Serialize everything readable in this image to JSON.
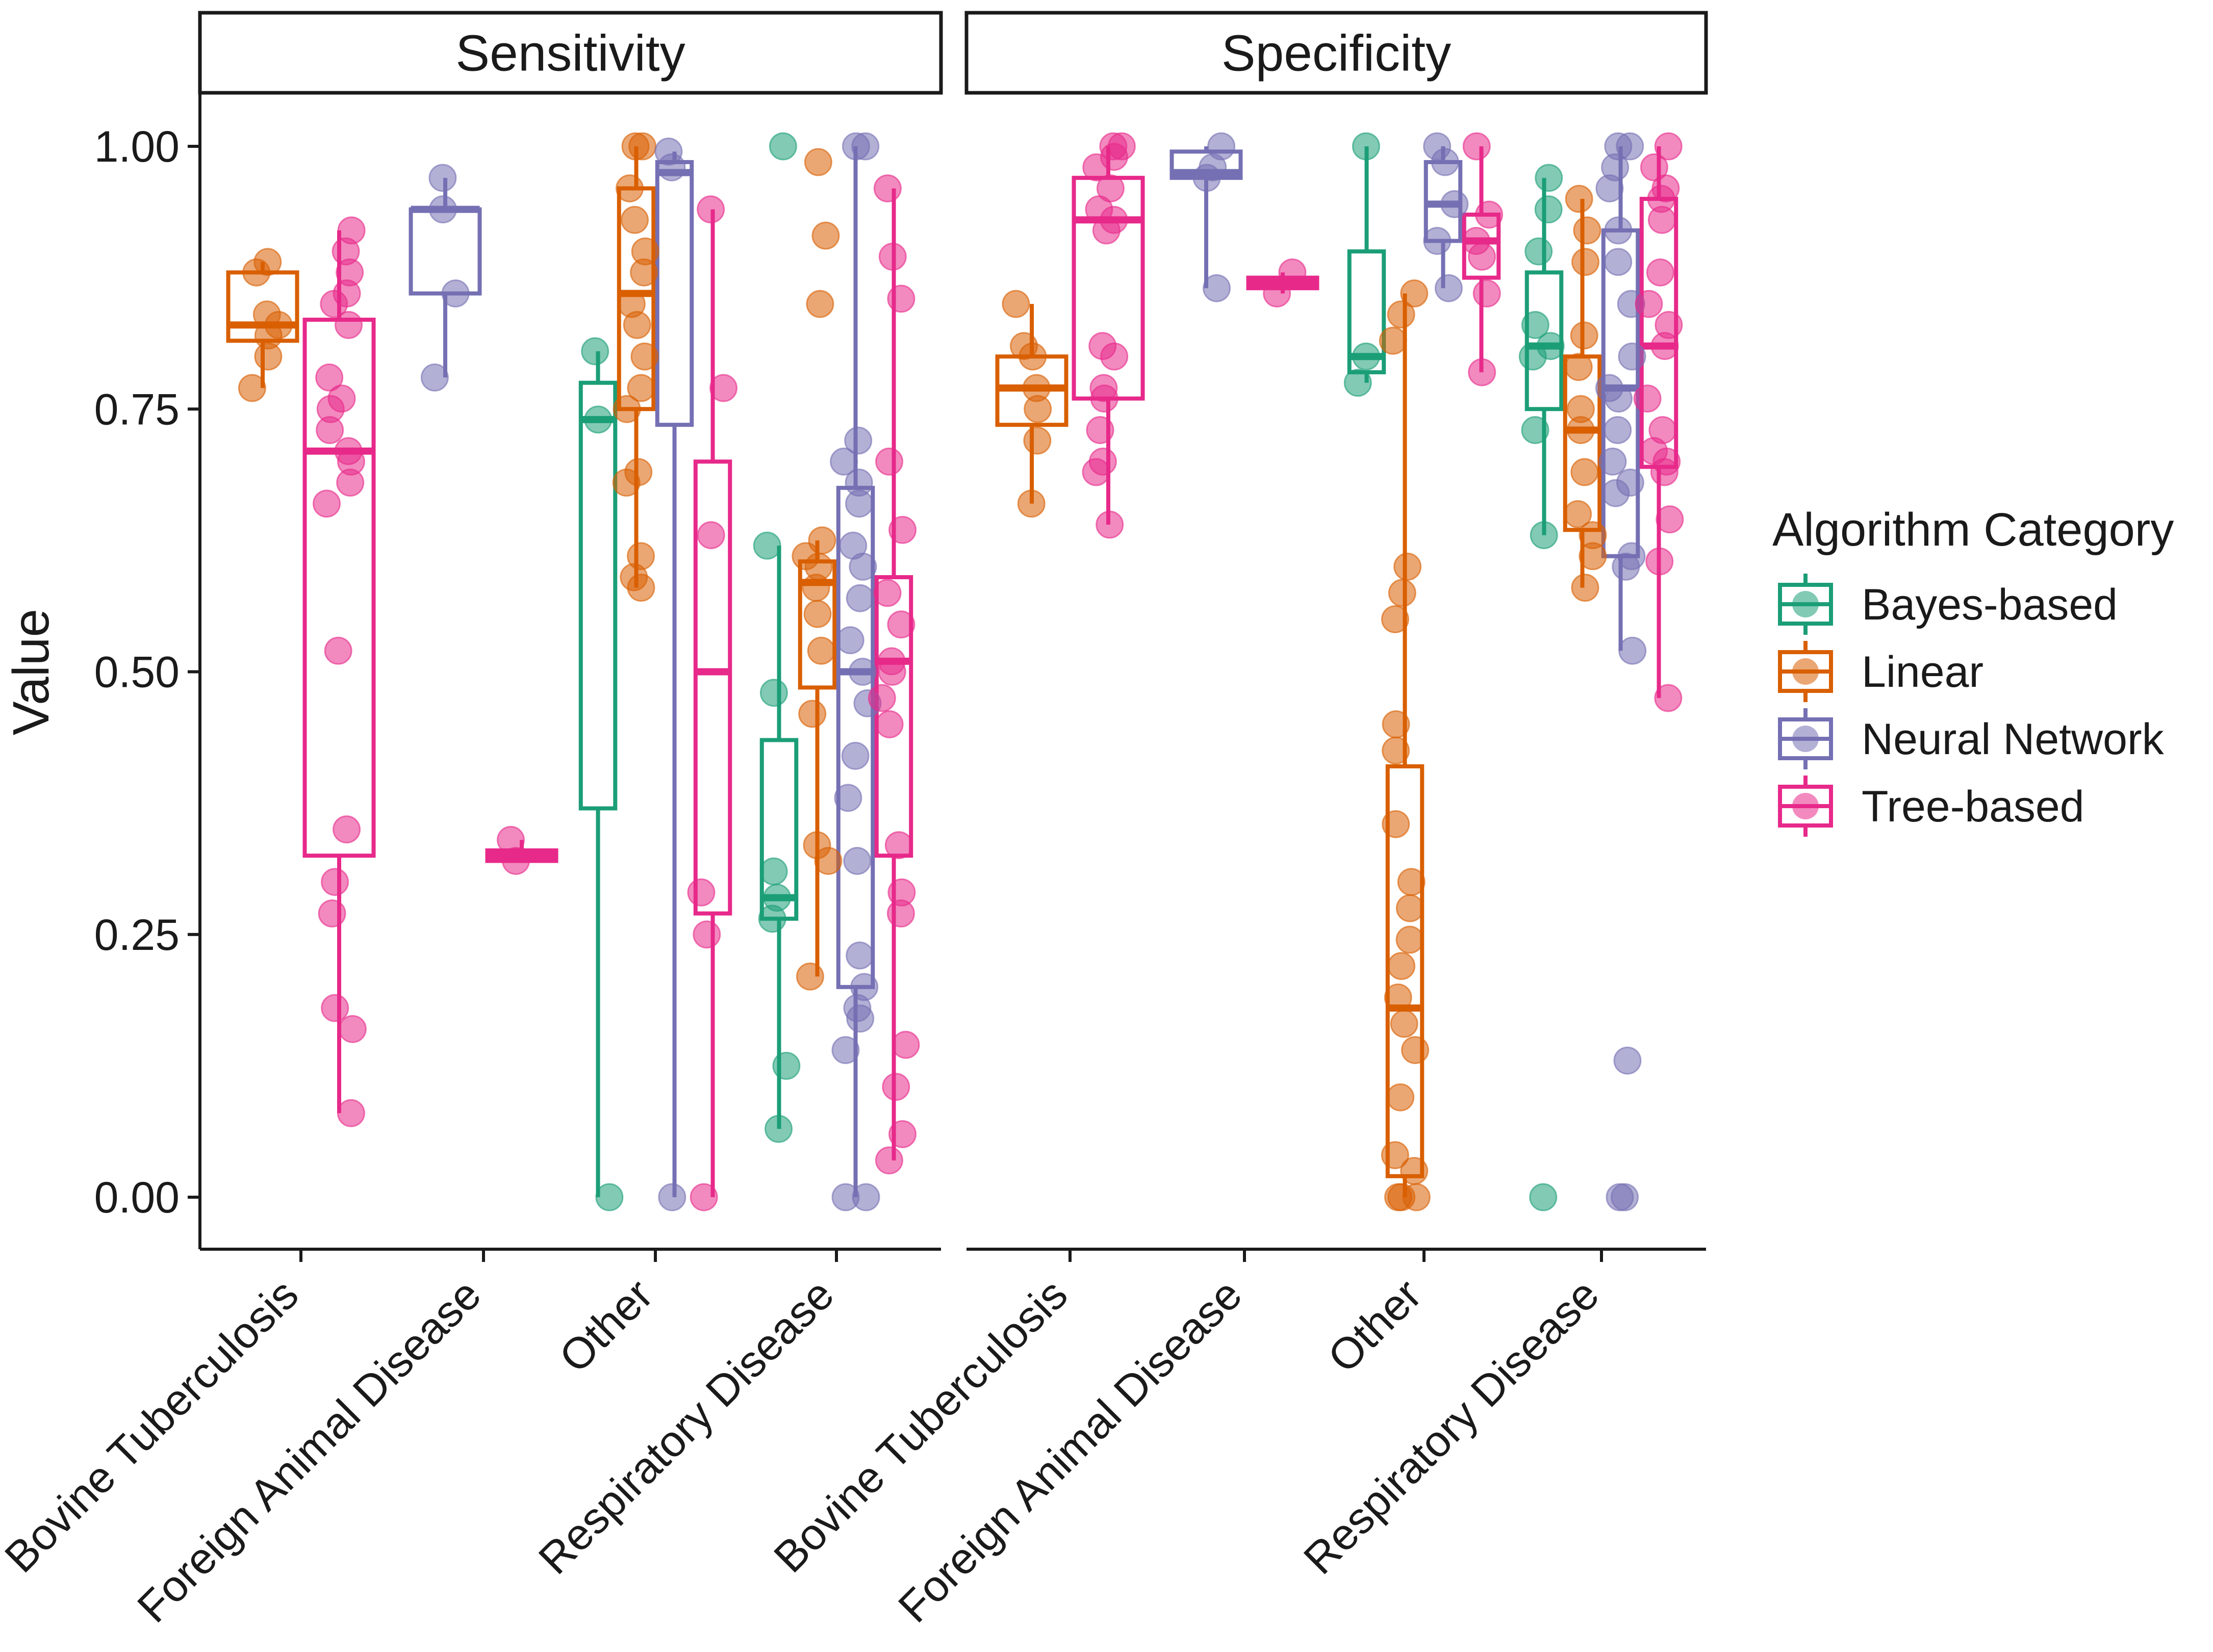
{
  "chart_data": {
    "type": "boxplot",
    "ylabel": "Value",
    "ylim": [
      -0.05,
      1.05
    ],
    "yticks": [
      0,
      0.25,
      0.5,
      0.75,
      1
    ],
    "ytick_labels": [
      "0.00",
      "0.25",
      "0.50",
      "0.75",
      "1.00"
    ],
    "panels": [
      "Sensitivity",
      "Specificity"
    ],
    "categories": [
      "Bovine Tuberculosis",
      "Foreign Animal Disease",
      "Other",
      "Respiratory Disease"
    ],
    "legend": {
      "title": "Algorithm Category",
      "position": "right",
      "items": [
        {
          "name": "Bayes-based",
          "color": "#1b9e77"
        },
        {
          "name": "Linear",
          "color": "#d95f02"
        },
        {
          "name": "Neural Network",
          "color": "#7570b3"
        },
        {
          "name": "Tree-based",
          "color": "#e7298a"
        }
      ]
    },
    "boxes": [
      {
        "panel": "Sensitivity",
        "category": "Bovine Tuberculosis",
        "series": "Linear",
        "min": 0.77,
        "q1": 0.815,
        "median": 0.83,
        "q3": 0.88,
        "max": 0.89
      },
      {
        "panel": "Sensitivity",
        "category": "Bovine Tuberculosis",
        "series": "Tree-based",
        "min": 0.08,
        "q1": 0.325,
        "median": 0.71,
        "q3": 0.835,
        "max": 0.92
      },
      {
        "panel": "Sensitivity",
        "category": "Foreign Animal Disease",
        "series": "Neural Network",
        "min": 0.78,
        "q1": 0.86,
        "median": 0.94,
        "q3": 0.94,
        "max": 0.97
      },
      {
        "panel": "Sensitivity",
        "category": "Foreign Animal Disease",
        "series": "Tree-based",
        "min": 0.32,
        "q1": 0.32,
        "median": 0.325,
        "q3": 0.33,
        "max": 0.34
      },
      {
        "panel": "Sensitivity",
        "category": "Other",
        "series": "Bayes-based",
        "min": 0.0,
        "q1": 0.37,
        "median": 0.74,
        "q3": 0.775,
        "max": 0.805
      },
      {
        "panel": "Sensitivity",
        "category": "Other",
        "series": "Linear",
        "min": 0.58,
        "q1": 0.75,
        "median": 0.86,
        "q3": 0.96,
        "max": 1.0
      },
      {
        "panel": "Sensitivity",
        "category": "Other",
        "series": "Neural Network",
        "min": 0.0,
        "q1": 0.735,
        "median": 0.975,
        "q3": 0.985,
        "max": 0.995
      },
      {
        "panel": "Sensitivity",
        "category": "Other",
        "series": "Tree-based",
        "min": 0.0,
        "q1": 0.27,
        "median": 0.5,
        "q3": 0.7,
        "max": 0.94
      },
      {
        "panel": "Sensitivity",
        "category": "Respiratory Disease",
        "series": "Bayes-based",
        "min": 0.065,
        "q1": 0.265,
        "median": 0.285,
        "q3": 0.435,
        "max": 0.62
      },
      {
        "panel": "Sensitivity",
        "category": "Respiratory Disease",
        "series": "Linear",
        "min": 0.21,
        "q1": 0.485,
        "median": 0.585,
        "q3": 0.605,
        "max": 0.625
      },
      {
        "panel": "Sensitivity",
        "category": "Respiratory Disease",
        "series": "Neural Network",
        "min": 0.0,
        "q1": 0.2,
        "median": 0.5,
        "q3": 0.675,
        "max": 1.0
      },
      {
        "panel": "Sensitivity",
        "category": "Respiratory Disease",
        "series": "Tree-based",
        "min": 0.035,
        "q1": 0.325,
        "median": 0.51,
        "q3": 0.59,
        "max": 0.96
      },
      {
        "panel": "Specificity",
        "category": "Bovine Tuberculosis",
        "series": "Linear",
        "min": 0.66,
        "q1": 0.735,
        "median": 0.77,
        "q3": 0.8,
        "max": 0.85
      },
      {
        "panel": "Specificity",
        "category": "Bovine Tuberculosis",
        "series": "Tree-based",
        "min": 0.64,
        "q1": 0.76,
        "median": 0.93,
        "q3": 0.97,
        "max": 1.0
      },
      {
        "panel": "Specificity",
        "category": "Foreign Animal Disease",
        "series": "Neural Network",
        "min": 0.865,
        "q1": 0.97,
        "median": 0.975,
        "q3": 0.995,
        "max": 1.0
      },
      {
        "panel": "Specificity",
        "category": "Foreign Animal Disease",
        "series": "Tree-based",
        "min": 0.86,
        "q1": 0.865,
        "median": 0.87,
        "q3": 0.875,
        "max": 0.88
      },
      {
        "panel": "Specificity",
        "category": "Other",
        "series": "Bayes-based",
        "min": 0.775,
        "q1": 0.785,
        "median": 0.8,
        "q3": 0.9,
        "max": 1.0
      },
      {
        "panel": "Specificity",
        "category": "Other",
        "series": "Linear",
        "min": 0.0,
        "q1": 0.02,
        "median": 0.18,
        "q3": 0.41,
        "max": 0.86
      },
      {
        "panel": "Specificity",
        "category": "Other",
        "series": "Neural Network",
        "min": 0.865,
        "q1": 0.91,
        "median": 0.945,
        "q3": 0.985,
        "max": 1.0
      },
      {
        "panel": "Specificity",
        "category": "Other",
        "series": "Tree-based",
        "min": 0.785,
        "q1": 0.875,
        "median": 0.91,
        "q3": 0.935,
        "max": 1.0
      },
      {
        "panel": "Specificity",
        "category": "Respiratory Disease",
        "series": "Bayes-based",
        "min": 0.63,
        "q1": 0.75,
        "median": 0.81,
        "q3": 0.88,
        "max": 0.97
      },
      {
        "panel": "Specificity",
        "category": "Respiratory Disease",
        "series": "Linear",
        "min": 0.58,
        "q1": 0.635,
        "median": 0.73,
        "q3": 0.8,
        "max": 0.95
      },
      {
        "panel": "Specificity",
        "category": "Respiratory Disease",
        "series": "Neural Network",
        "min": 0.52,
        "q1": 0.61,
        "median": 0.77,
        "q3": 0.92,
        "max": 1.0
      },
      {
        "panel": "Specificity",
        "category": "Respiratory Disease",
        "series": "Tree-based",
        "min": 0.475,
        "q1": 0.695,
        "median": 0.81,
        "q3": 0.95,
        "max": 1.0
      }
    ],
    "points": [
      {
        "panel": "Sensitivity",
        "category": "Bovine Tuberculosis",
        "series": "Linear",
        "values": [
          0.89,
          0.88,
          0.84,
          0.83,
          0.82,
          0.8,
          0.77
        ]
      },
      {
        "panel": "Sensitivity",
        "category": "Bovine Tuberculosis",
        "series": "Tree-based",
        "values": [
          0.92,
          0.9,
          0.88,
          0.86,
          0.85,
          0.83,
          0.78,
          0.76,
          0.75,
          0.73,
          0.71,
          0.7,
          0.68,
          0.66,
          0.52,
          0.35,
          0.3,
          0.27,
          0.18,
          0.16,
          0.08
        ]
      },
      {
        "panel": "Sensitivity",
        "category": "Foreign Animal Disease",
        "series": "Neural Network",
        "values": [
          0.97,
          0.94,
          0.86,
          0.78
        ]
      },
      {
        "panel": "Sensitivity",
        "category": "Foreign Animal Disease",
        "series": "Tree-based",
        "values": [
          0.34,
          0.32
        ]
      },
      {
        "panel": "Sensitivity",
        "category": "Other",
        "series": "Bayes-based",
        "values": [
          0.805,
          0.74,
          0.0
        ]
      },
      {
        "panel": "Sensitivity",
        "category": "Other",
        "series": "Linear",
        "values": [
          1.0,
          1.0,
          0.96,
          0.93,
          0.9,
          0.88,
          0.85,
          0.83,
          0.8,
          0.77,
          0.75,
          0.69,
          0.68,
          0.61,
          0.59,
          0.58
        ]
      },
      {
        "panel": "Sensitivity",
        "category": "Other",
        "series": "Neural Network",
        "values": [
          0.995,
          0.98,
          0.0
        ]
      },
      {
        "panel": "Sensitivity",
        "category": "Other",
        "series": "Tree-based",
        "values": [
          0.94,
          0.77,
          0.63,
          0.29,
          0.25,
          0.0
        ]
      },
      {
        "panel": "Sensitivity",
        "category": "Respiratory Disease",
        "series": "Bayes-based",
        "values": [
          1.0,
          0.62,
          0.48,
          0.31,
          0.285,
          0.265,
          0.125,
          0.065
        ]
      },
      {
        "panel": "Sensitivity",
        "category": "Respiratory Disease",
        "series": "Linear",
        "values": [
          0.985,
          0.915,
          0.85,
          0.625,
          0.61,
          0.6,
          0.58,
          0.555,
          0.52,
          0.46,
          0.335,
          0.32,
          0.21
        ]
      },
      {
        "panel": "Sensitivity",
        "category": "Respiratory Disease",
        "series": "Neural Network",
        "values": [
          1.0,
          1.0,
          0.72,
          0.7,
          0.68,
          0.66,
          0.62,
          0.6,
          0.57,
          0.53,
          0.5,
          0.47,
          0.42,
          0.38,
          0.32,
          0.23,
          0.2,
          0.18,
          0.17,
          0.14,
          0.0,
          0.0
        ]
      },
      {
        "panel": "Sensitivity",
        "category": "Respiratory Disease",
        "series": "Tree-based",
        "values": [
          0.96,
          0.895,
          0.855,
          0.7,
          0.635,
          0.575,
          0.545,
          0.51,
          0.5,
          0.475,
          0.45,
          0.335,
          0.29,
          0.27,
          0.145,
          0.105,
          0.06,
          0.035
        ]
      },
      {
        "panel": "Specificity",
        "category": "Bovine Tuberculosis",
        "series": "Linear",
        "values": [
          0.85,
          0.81,
          0.8,
          0.77,
          0.75,
          0.72,
          0.66
        ]
      },
      {
        "panel": "Specificity",
        "category": "Bovine Tuberculosis",
        "series": "Tree-based",
        "values": [
          1.0,
          1.0,
          0.99,
          0.98,
          0.96,
          0.94,
          0.93,
          0.92,
          0.81,
          0.8,
          0.77,
          0.76,
          0.73,
          0.7,
          0.69,
          0.64
        ]
      },
      {
        "panel": "Specificity",
        "category": "Foreign Animal Disease",
        "series": "Neural Network",
        "values": [
          1.0,
          0.98,
          0.97,
          0.865
        ]
      },
      {
        "panel": "Specificity",
        "category": "Foreign Animal Disease",
        "series": "Tree-based",
        "values": [
          0.88,
          0.86
        ]
      },
      {
        "panel": "Specificity",
        "category": "Other",
        "series": "Bayes-based",
        "values": [
          1.0,
          0.8,
          0.775
        ]
      },
      {
        "panel": "Specificity",
        "category": "Other",
        "series": "Linear",
        "values": [
          0.86,
          0.84,
          0.815,
          0.6,
          0.575,
          0.55,
          0.45,
          0.425,
          0.355,
          0.3,
          0.275,
          0.245,
          0.22,
          0.19,
          0.165,
          0.14,
          0.095,
          0.04,
          0.025,
          0.0,
          0.0,
          0.0
        ]
      },
      {
        "panel": "Specificity",
        "category": "Other",
        "series": "Neural Network",
        "values": [
          1.0,
          0.985,
          0.945,
          0.91,
          0.865
        ]
      },
      {
        "panel": "Specificity",
        "category": "Other",
        "series": "Tree-based",
        "values": [
          1.0,
          0.935,
          0.91,
          0.895,
          0.86,
          0.785
        ]
      },
      {
        "panel": "Specificity",
        "category": "Respiratory Disease",
        "series": "Bayes-based",
        "values": [
          0.97,
          0.94,
          0.9,
          0.83,
          0.81,
          0.8,
          0.73,
          0.63,
          0.0
        ]
      },
      {
        "panel": "Specificity",
        "category": "Respiratory Disease",
        "series": "Linear",
        "values": [
          0.95,
          0.92,
          0.89,
          0.82,
          0.79,
          0.75,
          0.73,
          0.69,
          0.65,
          0.63,
          0.61,
          0.58
        ]
      },
      {
        "panel": "Specificity",
        "category": "Respiratory Disease",
        "series": "Neural Network",
        "values": [
          1.0,
          1.0,
          0.98,
          0.96,
          0.92,
          0.89,
          0.85,
          0.8,
          0.77,
          0.76,
          0.73,
          0.7,
          0.68,
          0.67,
          0.61,
          0.6,
          0.52,
          0.13,
          0.0,
          0.0
        ]
      },
      {
        "panel": "Specificity",
        "category": "Respiratory Disease",
        "series": "Tree-based",
        "values": [
          1.0,
          0.98,
          0.96,
          0.95,
          0.93,
          0.88,
          0.85,
          0.83,
          0.81,
          0.76,
          0.73,
          0.71,
          0.7,
          0.69,
          0.645,
          0.605,
          0.475
        ]
      }
    ]
  }
}
